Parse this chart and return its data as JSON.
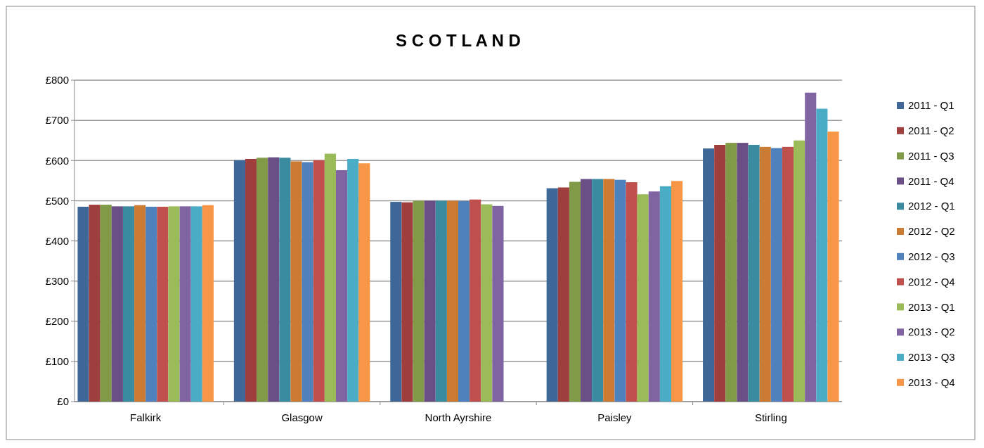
{
  "chart_data": {
    "type": "bar",
    "title": "S C O T L A N D",
    "categories": [
      "Falkirk",
      "Glasgow",
      "North Ayrshire",
      "Paisley",
      "Stirling"
    ],
    "series": [
      {
        "name": "2011 - Q1",
        "color": "#3f6797",
        "values": [
          485,
          601,
          497,
          531,
          630
        ]
      },
      {
        "name": "2011 - Q2",
        "color": "#9e3f3d",
        "values": [
          490,
          604,
          496,
          533,
          639
        ]
      },
      {
        "name": "2011 - Q3",
        "color": "#809a47",
        "values": [
          490,
          607,
          500,
          547,
          644
        ]
      },
      {
        "name": "2011 - Q4",
        "color": "#6a4f86",
        "values": [
          486,
          608,
          500,
          554,
          644
        ]
      },
      {
        "name": "2012 - Q1",
        "color": "#3a8aa0",
        "values": [
          486,
          607,
          500,
          554,
          639
        ]
      },
      {
        "name": "2012 - Q2",
        "color": "#cc7b33",
        "values": [
          489,
          598,
          500,
          554,
          634
        ]
      },
      {
        "name": "2012 - Q3",
        "color": "#4f81bd",
        "values": [
          485,
          596,
          499,
          552,
          631
        ]
      },
      {
        "name": "2012 - Q4",
        "color": "#c0504d",
        "values": [
          485,
          601,
          503,
          546,
          634
        ]
      },
      {
        "name": "2013 - Q1",
        "color": "#9bbb59",
        "values": [
          486,
          617,
          491,
          516,
          650
        ]
      },
      {
        "name": "2013 - Q2",
        "color": "#8064a2",
        "values": [
          486,
          576,
          487,
          523,
          769
        ]
      },
      {
        "name": "2013 - Q3",
        "color": "#4bacc6",
        "values": [
          486,
          604,
          null,
          536,
          729
        ]
      },
      {
        "name": "2013 - Q4",
        "color": "#f79646",
        "values": [
          489,
          593,
          null,
          549,
          672
        ]
      }
    ],
    "ylim": [
      0,
      800
    ],
    "yticks": [
      {
        "value": 0,
        "label": "£0"
      },
      {
        "value": 100,
        "label": "£100"
      },
      {
        "value": 200,
        "label": "£200"
      },
      {
        "value": 300,
        "label": "£300"
      },
      {
        "value": 400,
        "label": "£400"
      },
      {
        "value": 500,
        "label": "£500"
      },
      {
        "value": 600,
        "label": "£600"
      },
      {
        "value": 700,
        "label": "£700"
      },
      {
        "value": 800,
        "label": "£800"
      }
    ],
    "grid": "y",
    "legend": "right"
  }
}
